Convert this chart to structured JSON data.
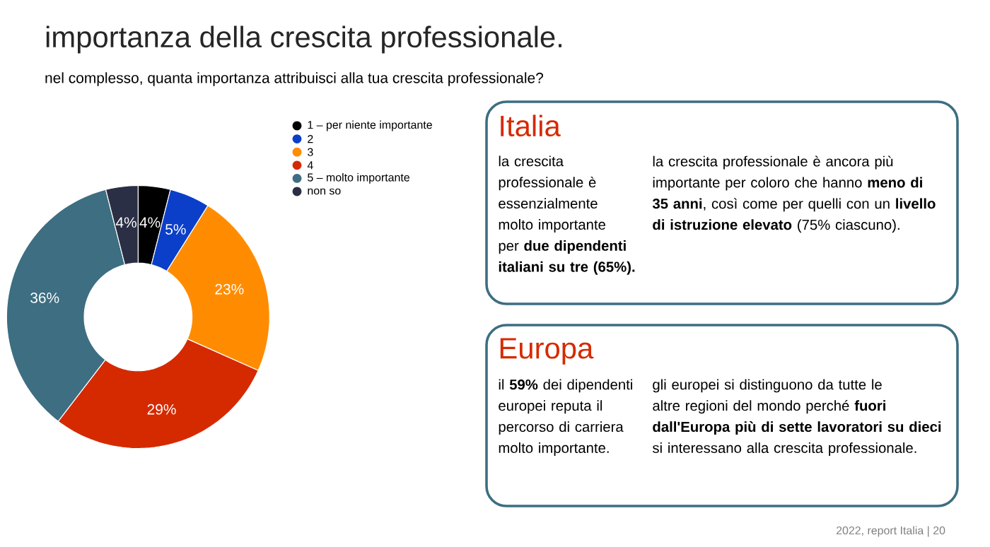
{
  "chart_data": {
    "type": "donut",
    "title": "importanza della crescita professionale.",
    "subtitle": "nel complesso, quanta importanza attribuisci alla tua crescita professionale?",
    "categories": [
      "1 – per niente importante",
      "2",
      "3",
      "4",
      "5 – molto importante",
      "non so"
    ],
    "values": [
      4,
      5,
      23,
      29,
      36,
      4
    ],
    "value_labels": [
      "4%",
      "5%",
      "23%",
      "29%",
      "36%",
      "4%"
    ],
    "colors": [
      "#000000",
      "#0b3fc9",
      "#ff8c00",
      "#d52a00",
      "#3d6e82",
      "#2a2f45"
    ],
    "legend": "top right",
    "annotations": [
      "Italia",
      "la crescita professionale è essenzialmente molto importante per **due dipendenti italiani su tre (65%).**",
      "la crescita professionale è ancora più importante per coloro che hanno **meno di 35 anni**, così come per quelli con un **livello di istruzione elevato** (75% ciascuno).",
      "Europa",
      "il **59%** dei dipendenti europei reputa il percorso di carriera molto importante.",
      "gli europei si distinguono da tutte le altre regioni del mondo perché **fuori dall'Europa più di sette lavoratori su dieci** si interessano alla crescita professionale.",
      "2022, report Italia | 20"
    ]
  }
}
